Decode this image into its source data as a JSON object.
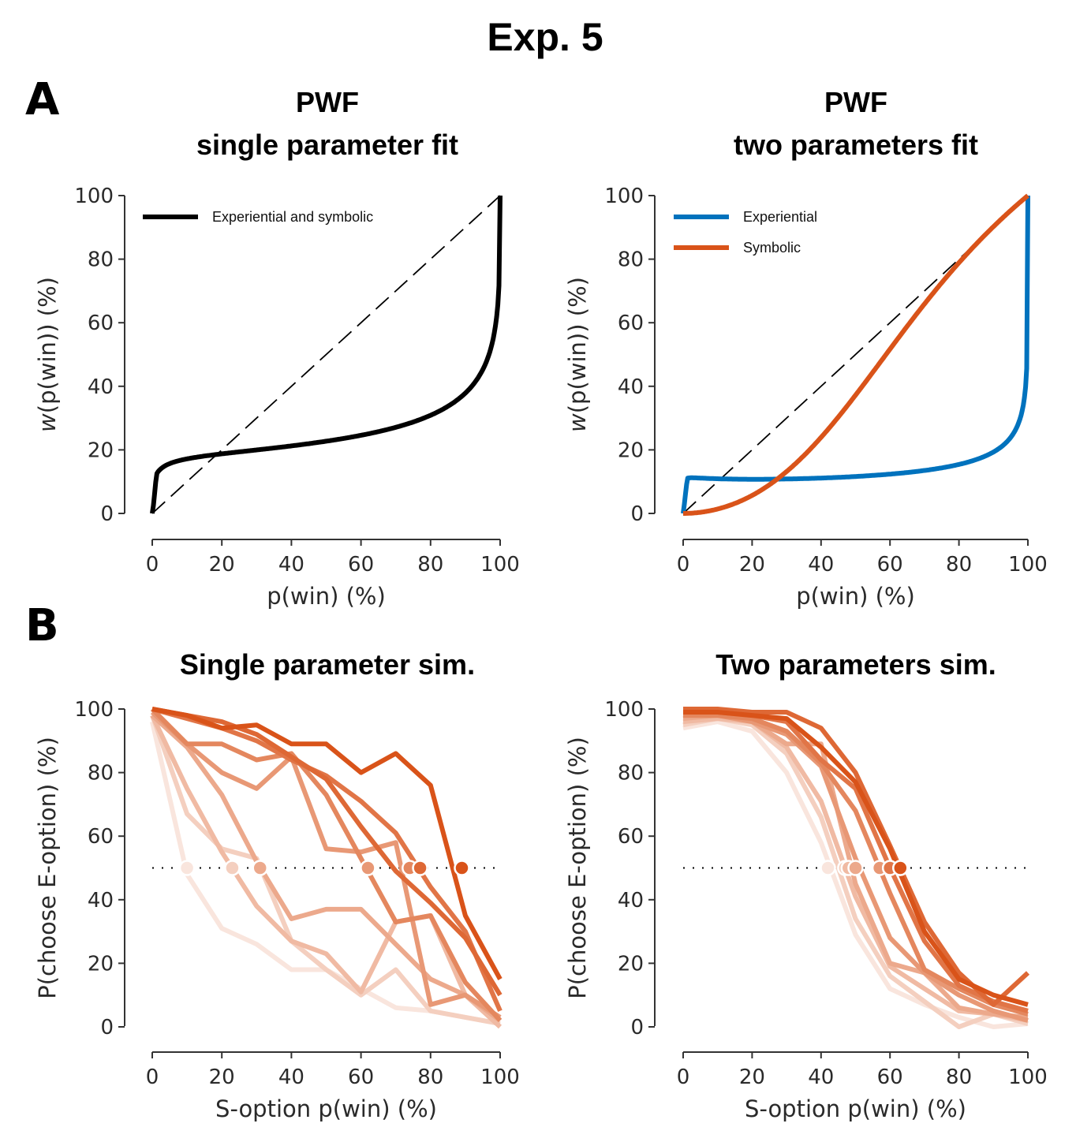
{
  "figure": {
    "title": "Exp. 5",
    "panel_letters": [
      "A",
      "B"
    ]
  },
  "chart_data": [
    {
      "type": "line",
      "title": "PWF\nsingle parameter fit",
      "title_lines": [
        "PWF",
        "single parameter fit"
      ],
      "xlabel": "p(win) (%)",
      "ylabel_italic": "w",
      "ylabel_rest": "(p(win)) (%)",
      "xlim": [
        0,
        100
      ],
      "ylim": [
        0,
        100
      ],
      "xticks": [
        0,
        20,
        40,
        60,
        80,
        100
      ],
      "yticks": [
        0,
        20,
        40,
        60,
        80,
        100
      ],
      "legend_position": "top-left",
      "identity_line": true,
      "series": [
        {
          "name": "Experiential and symbolic",
          "color": "#000000",
          "kind": "pwf",
          "gamma": 0.36,
          "offset": 0.25
        }
      ]
    },
    {
      "type": "line",
      "title": "PWF\ntwo parameters fit",
      "title_lines": [
        "PWF",
        "two parameters fit"
      ],
      "xlabel": "p(win) (%)",
      "ylabel_italic": "w",
      "ylabel_rest": "(p(win)) (%)",
      "xlim": [
        0,
        100
      ],
      "ylim": [
        0,
        100
      ],
      "xticks": [
        0,
        20,
        40,
        60,
        80,
        100
      ],
      "yticks": [
        0,
        20,
        40,
        60,
        80,
        100
      ],
      "legend_position": "top-left",
      "identity_line": true,
      "series": [
        {
          "name": "Experiential",
          "color": "#0072bd",
          "kind": "pwf",
          "gamma": 0.26,
          "offset": 0.32
        },
        {
          "name": "Symbolic",
          "color": "#d95319",
          "kind": "pwf",
          "gamma": 1.9,
          "offset": 0
        }
      ]
    },
    {
      "type": "line",
      "title": "Single parameter sim.",
      "xlabel": "S-option p(win) (%)",
      "ylabel": "P(choose E-option) (%)",
      "xlim": [
        0,
        100
      ],
      "ylim": [
        0,
        100
      ],
      "xticks": [
        0,
        20,
        40,
        60,
        80,
        100
      ],
      "yticks": [
        0,
        20,
        40,
        60,
        80,
        100
      ],
      "reference_line_y": 50,
      "base_color": "#d95319",
      "x": [
        0,
        10,
        20,
        30,
        40,
        50,
        60,
        70,
        80,
        90,
        100
      ],
      "series": [
        {
          "opacity": 0.15,
          "values": [
            96,
            48,
            31,
            26,
            18,
            18,
            12,
            6,
            5,
            3,
            1
          ],
          "indifference_x": 10
        },
        {
          "opacity": 0.28,
          "values": [
            98,
            67,
            56,
            53,
            27,
            18,
            10,
            18,
            5,
            3,
            1
          ],
          "indifference_x": 23
        },
        {
          "opacity": 0.4,
          "values": [
            98,
            75,
            55,
            38,
            27,
            23,
            11,
            33,
            35,
            10,
            0
          ],
          "indifference_x": 31
        },
        {
          "opacity": 0.5,
          "values": [
            98,
            88,
            73,
            52,
            34,
            37,
            37,
            26,
            15,
            10,
            2
          ],
          "indifference_x": 31
        },
        {
          "opacity": 0.6,
          "values": [
            99,
            89,
            80,
            75,
            85,
            56,
            55,
            58,
            7,
            10,
            3
          ],
          "indifference_x": 62
        },
        {
          "opacity": 0.7,
          "values": [
            100,
            89,
            89,
            84,
            86,
            73,
            53,
            33,
            35,
            14,
            2
          ],
          "indifference_x": 74
        },
        {
          "opacity": 0.8,
          "values": [
            100,
            97,
            94,
            90,
            84,
            79,
            71,
            61,
            44,
            30,
            5
          ],
          "indifference_x": 77
        },
        {
          "opacity": 0.88,
          "values": [
            100,
            98,
            96,
            92,
            85,
            78,
            63,
            49,
            39,
            28,
            10
          ],
          "indifference_x": 77
        },
        {
          "opacity": 1.0,
          "values": [
            100,
            98,
            94,
            95,
            89,
            89,
            80,
            86,
            76,
            35,
            15
          ],
          "indifference_x": 89
        }
      ]
    },
    {
      "type": "line",
      "title": "Two parameters sim.",
      "xlabel": "S-option p(win) (%)",
      "ylabel": "P(choose E-option) (%)",
      "xlim": [
        0,
        100
      ],
      "ylim": [
        0,
        100
      ],
      "xticks": [
        0,
        20,
        40,
        60,
        80,
        100
      ],
      "yticks": [
        0,
        20,
        40,
        60,
        80,
        100
      ],
      "reference_line_y": 50,
      "base_color": "#d95319",
      "x": [
        0,
        10,
        20,
        30,
        40,
        50,
        60,
        70,
        80,
        90,
        100
      ],
      "series": [
        {
          "opacity": 0.15,
          "values": [
            94,
            96,
            93,
            80,
            58,
            29,
            12,
            7,
            3,
            0,
            1
          ],
          "indifference_x": 42
        },
        {
          "opacity": 0.28,
          "values": [
            95,
            97,
            95,
            86,
            66,
            34,
            16,
            8,
            0,
            4,
            1
          ],
          "indifference_x": 47
        },
        {
          "opacity": 0.4,
          "values": [
            96,
            97,
            96,
            88,
            71,
            41,
            19,
            12,
            5,
            4,
            2
          ],
          "indifference_x": 48
        },
        {
          "opacity": 0.5,
          "values": [
            97,
            98,
            96,
            89,
            89,
            45,
            20,
            17,
            6,
            4,
            3
          ],
          "indifference_x": 50
        },
        {
          "opacity": 0.6,
          "values": [
            98,
            98,
            96,
            92,
            82,
            53,
            28,
            17,
            10,
            5,
            2
          ],
          "indifference_x": 57
        },
        {
          "opacity": 0.7,
          "values": [
            98,
            98,
            97,
            93,
            83,
            68,
            42,
            18,
            12,
            7,
            4
          ],
          "indifference_x": 60
        },
        {
          "opacity": 0.8,
          "values": [
            99,
            99,
            98,
            96,
            84,
            75,
            50,
            27,
            13,
            8,
            5
          ],
          "indifference_x": 60
        },
        {
          "opacity": 0.88,
          "values": [
            100,
            100,
            99,
            99,
            94,
            80,
            57,
            33,
            17,
            7,
            17
          ],
          "indifference_x": 63
        },
        {
          "opacity": 1.0,
          "values": [
            99,
            99,
            98,
            97,
            88,
            77,
            56,
            30,
            15,
            10,
            7
          ],
          "indifference_x": 63
        }
      ]
    }
  ]
}
